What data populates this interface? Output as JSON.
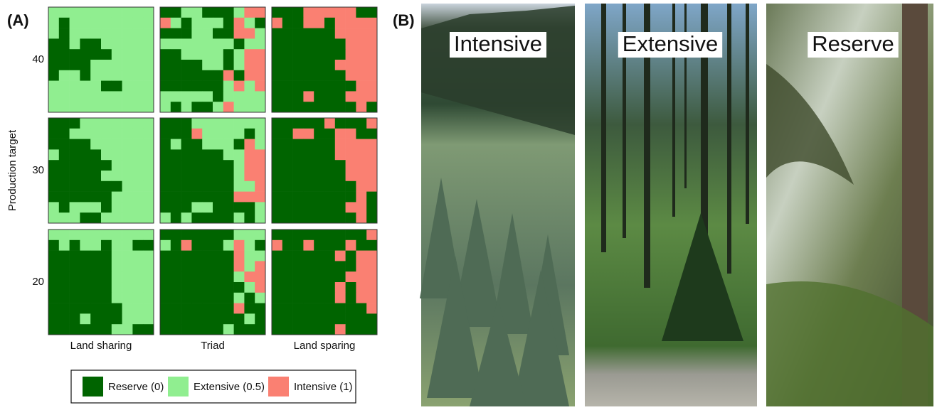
{
  "panel_a": {
    "label": "(A)",
    "y_label": "Production target",
    "targets": [
      40,
      30,
      20
    ],
    "strategies": [
      "Land sharing",
      "Triad",
      "Land sparing"
    ],
    "legend": [
      {
        "label": "Reserve (0)",
        "value": 0,
        "color": "#006400"
      },
      {
        "label": "Extensive (0.5)",
        "value": 0.5,
        "color": "#90ee90"
      },
      {
        "label": "Intensive (1)",
        "value": 1,
        "color": "#fa8072"
      }
    ],
    "grids": [
      [
        [
          [
            0.5,
            0.5,
            0.5,
            0.5,
            0.5,
            0.5,
            0.5,
            0.5,
            0.5,
            0.5
          ],
          [
            0.5,
            0,
            0.5,
            0.5,
            0.5,
            0.5,
            0.5,
            0.5,
            0.5,
            0.5
          ],
          [
            0.5,
            0,
            0.5,
            0.5,
            0.5,
            0.5,
            0.5,
            0.5,
            0.5,
            0.5
          ],
          [
            0,
            0,
            0.5,
            0,
            0,
            0.5,
            0.5,
            0.5,
            0.5,
            0.5
          ],
          [
            0,
            0,
            0,
            0,
            0,
            0,
            0.5,
            0.5,
            0.5,
            0.5
          ],
          [
            0,
            0,
            0,
            0,
            0.5,
            0.5,
            0.5,
            0.5,
            0.5,
            0.5
          ],
          [
            0,
            0.5,
            0.5,
            0,
            0.5,
            0.5,
            0.5,
            0.5,
            0.5,
            0.5
          ],
          [
            0.5,
            0.5,
            0.5,
            0.5,
            0.5,
            0,
            0,
            0.5,
            0.5,
            0.5
          ],
          [
            0.5,
            0.5,
            0.5,
            0.5,
            0.5,
            0.5,
            0.5,
            0.5,
            0.5,
            0.5
          ],
          [
            0.5,
            0.5,
            0.5,
            0.5,
            0.5,
            0.5,
            0.5,
            0.5,
            0.5,
            0.5
          ]
        ],
        [
          [
            0,
            0,
            0.5,
            0.5,
            0,
            0,
            0,
            0.5,
            1,
            1
          ],
          [
            1,
            0.5,
            0,
            0.5,
            0.5,
            0.5,
            0,
            1,
            0.5,
            0
          ],
          [
            0,
            0,
            0,
            0.5,
            0.5,
            0,
            0,
            1,
            1,
            0.5
          ],
          [
            0.5,
            0.5,
            0.5,
            0.5,
            0.5,
            0.5,
            0.5,
            0,
            0.5,
            0.5
          ],
          [
            0,
            0,
            0.5,
            0.5,
            0.5,
            0.5,
            0,
            0.5,
            1,
            1
          ],
          [
            0,
            0,
            0,
            0,
            0.5,
            0.5,
            0,
            0.5,
            1,
            1
          ],
          [
            0,
            0,
            0,
            0,
            0,
            0,
            1,
            0,
            1,
            1
          ],
          [
            0,
            0,
            0,
            0,
            0,
            0,
            0.5,
            1,
            0.5,
            1
          ],
          [
            0.5,
            0.5,
            0.5,
            0.5,
            0.5,
            0,
            0.5,
            0.5,
            0.5,
            0.5
          ],
          [
            0.5,
            0,
            0.5,
            0,
            0,
            0.5,
            1,
            0.5,
            0.5,
            0.5
          ]
        ],
        [
          [
            0,
            0,
            0,
            1,
            1,
            1,
            1,
            1,
            0,
            0
          ],
          [
            1,
            0,
            0,
            1,
            1,
            0,
            1,
            1,
            1,
            1
          ],
          [
            0,
            0,
            0,
            0,
            0,
            0,
            1,
            1,
            1,
            1
          ],
          [
            0,
            0,
            0,
            0,
            0,
            0,
            0,
            1,
            1,
            1
          ],
          [
            0,
            0,
            0,
            0,
            0,
            0,
            0,
            1,
            1,
            1
          ],
          [
            0,
            0,
            0,
            0,
            0,
            0,
            1,
            1,
            1,
            1
          ],
          [
            0,
            0,
            0,
            0,
            0,
            0,
            0,
            1,
            1,
            1
          ],
          [
            0,
            0,
            0,
            0,
            0,
            0,
            0,
            0,
            1,
            1
          ],
          [
            0,
            0,
            0,
            1,
            0,
            0,
            0,
            1,
            1,
            1
          ],
          [
            0,
            0,
            0,
            0,
            0,
            0,
            0,
            0,
            1,
            0
          ]
        ]
      ],
      [
        [
          [
            0,
            0,
            0,
            0.5,
            0.5,
            0.5,
            0.5,
            0.5,
            0.5,
            0.5
          ],
          [
            0,
            0,
            0.5,
            0.5,
            0.5,
            0.5,
            0.5,
            0.5,
            0.5,
            0.5
          ],
          [
            0,
            0,
            0,
            0,
            0.5,
            0.5,
            0.5,
            0.5,
            0.5,
            0.5
          ],
          [
            0.5,
            0,
            0,
            0,
            0,
            0.5,
            0.5,
            0.5,
            0.5,
            0.5
          ],
          [
            0,
            0,
            0,
            0,
            0,
            0,
            0.5,
            0.5,
            0.5,
            0.5
          ],
          [
            0,
            0,
            0,
            0,
            0,
            0.5,
            0.5,
            0.5,
            0.5,
            0.5
          ],
          [
            0,
            0,
            0,
            0,
            0,
            0,
            0,
            0.5,
            0.5,
            0.5
          ],
          [
            0,
            0,
            0,
            0,
            0,
            0,
            0.5,
            0.5,
            0.5,
            0.5
          ],
          [
            0.5,
            0,
            0.5,
            0.5,
            0.5,
            0,
            0.5,
            0.5,
            0.5,
            0.5
          ],
          [
            0.5,
            0.5,
            0.5,
            0,
            0,
            0.5,
            0.5,
            0.5,
            0.5,
            0.5
          ]
        ],
        [
          [
            0,
            0,
            0,
            0.5,
            0.5,
            0.5,
            0.5,
            0.5,
            0.5,
            0.5
          ],
          [
            0,
            0,
            0,
            1,
            0.5,
            0.5,
            0.5,
            0.5,
            0,
            0.5
          ],
          [
            0,
            0.5,
            0,
            0,
            0.5,
            0.5,
            0.5,
            0,
            1,
            0.5
          ],
          [
            0,
            0,
            0,
            0,
            0,
            0,
            0.5,
            0.5,
            1,
            1
          ],
          [
            0,
            0,
            0,
            0,
            0,
            0,
            0,
            0.5,
            1,
            1
          ],
          [
            0,
            0,
            0,
            0,
            0,
            0,
            0,
            0.5,
            1,
            1
          ],
          [
            0,
            0,
            0,
            0,
            0,
            0,
            0,
            0.5,
            0.5,
            1
          ],
          [
            0,
            0,
            0,
            0,
            0,
            0,
            0,
            1,
            1,
            1
          ],
          [
            0,
            0,
            0,
            0.5,
            0.5,
            0,
            0,
            0,
            0,
            0.5
          ],
          [
            0.5,
            0,
            0.5,
            0,
            0,
            0,
            0,
            0.5,
            0,
            0.5
          ]
        ],
        [
          [
            0,
            0,
            0,
            0,
            0,
            1,
            0,
            0,
            0,
            1
          ],
          [
            0,
            0,
            1,
            1,
            0,
            0,
            1,
            1,
            0,
            0
          ],
          [
            0,
            0,
            0,
            0,
            0,
            0,
            1,
            1,
            1,
            1
          ],
          [
            0,
            0,
            0,
            0,
            0,
            0,
            1,
            1,
            1,
            1
          ],
          [
            0,
            0,
            0,
            0,
            0,
            0,
            0,
            1,
            1,
            1
          ],
          [
            0,
            0,
            0,
            0,
            0,
            0,
            0,
            1,
            1,
            1
          ],
          [
            0,
            0,
            0,
            0,
            0,
            0,
            0,
            0,
            1,
            1
          ],
          [
            0,
            0,
            0,
            0,
            0,
            0,
            0,
            0,
            1,
            0
          ],
          [
            0,
            0,
            0,
            0,
            0,
            0,
            0,
            1,
            1,
            0
          ],
          [
            0,
            0,
            0,
            0,
            0,
            0,
            0,
            0,
            1,
            0
          ]
        ]
      ],
      [
        [
          [
            0.5,
            0.5,
            0.5,
            0.5,
            0.5,
            0.5,
            0.5,
            0.5,
            0.5,
            0.5
          ],
          [
            0,
            0.5,
            0,
            0.5,
            0.5,
            0,
            0.5,
            0.5,
            0,
            0
          ],
          [
            0,
            0,
            0,
            0,
            0,
            0,
            0.5,
            0.5,
            0.5,
            0.5
          ],
          [
            0,
            0,
            0,
            0,
            0,
            0,
            0.5,
            0.5,
            0.5,
            0.5
          ],
          [
            0,
            0,
            0,
            0,
            0,
            0,
            0.5,
            0.5,
            0.5,
            0.5
          ],
          [
            0,
            0,
            0,
            0,
            0,
            0,
            0.5,
            0.5,
            0.5,
            0.5
          ],
          [
            0,
            0,
            0,
            0,
            0,
            0,
            0.5,
            0.5,
            0.5,
            0.5
          ],
          [
            0,
            0,
            0,
            0,
            0,
            0,
            0,
            0.5,
            0.5,
            0.5
          ],
          [
            0,
            0,
            0,
            0.5,
            0,
            0,
            0,
            0.5,
            0.5,
            0.5
          ],
          [
            0,
            0,
            0,
            0,
            0,
            0,
            0.5,
            0.5,
            0,
            0
          ]
        ],
        [
          [
            0,
            0,
            0,
            0,
            0,
            0,
            0,
            0.5,
            0.5,
            0.5
          ],
          [
            0.5,
            0,
            1,
            0,
            0,
            0,
            0.5,
            1,
            0.5,
            0
          ],
          [
            0,
            0,
            0,
            0,
            0,
            0,
            0,
            1,
            0.5,
            0.5
          ],
          [
            0,
            0,
            0,
            0,
            0,
            0,
            0,
            1,
            0.5,
            1
          ],
          [
            0,
            0,
            0,
            0,
            0,
            0,
            0,
            0.5,
            1,
            1
          ],
          [
            0,
            0,
            0,
            0,
            0,
            0,
            0,
            0,
            0.5,
            1
          ],
          [
            0,
            0,
            0,
            0,
            0,
            0,
            0,
            0.5,
            0,
            0.5
          ],
          [
            0,
            0,
            0,
            0,
            0,
            0,
            0,
            1,
            0,
            0
          ],
          [
            0,
            0,
            0,
            0,
            0,
            0,
            0,
            0,
            0.5,
            0
          ],
          [
            0,
            0,
            0,
            0,
            0,
            0,
            0.5,
            0,
            0,
            0
          ]
        ],
        [
          [
            0,
            0,
            0,
            0,
            0,
            0,
            0,
            0,
            0,
            1
          ],
          [
            1,
            0,
            0,
            1,
            0,
            0,
            0,
            1,
            0,
            0
          ],
          [
            0,
            0,
            0,
            0,
            0,
            0,
            1,
            0,
            1,
            1
          ],
          [
            0,
            0,
            0,
            0,
            0,
            0,
            0,
            0,
            1,
            1
          ],
          [
            0,
            0,
            0,
            0,
            0,
            0,
            0,
            1,
            1,
            1
          ],
          [
            0,
            0,
            0,
            0,
            0,
            0,
            1,
            0,
            1,
            1
          ],
          [
            0,
            0,
            0,
            0,
            0,
            0,
            1,
            0,
            1,
            1
          ],
          [
            0,
            0,
            0,
            0,
            0,
            0,
            0,
            0,
            0,
            1
          ],
          [
            0,
            0,
            0,
            0,
            0,
            0,
            0,
            0,
            0,
            0
          ],
          [
            0,
            0,
            0,
            0,
            0,
            0,
            1,
            0,
            0,
            0
          ]
        ]
      ]
    ]
  },
  "panel_b": {
    "label": "(B)",
    "photos": [
      "Intensive",
      "Extensive",
      "Reserve"
    ]
  }
}
